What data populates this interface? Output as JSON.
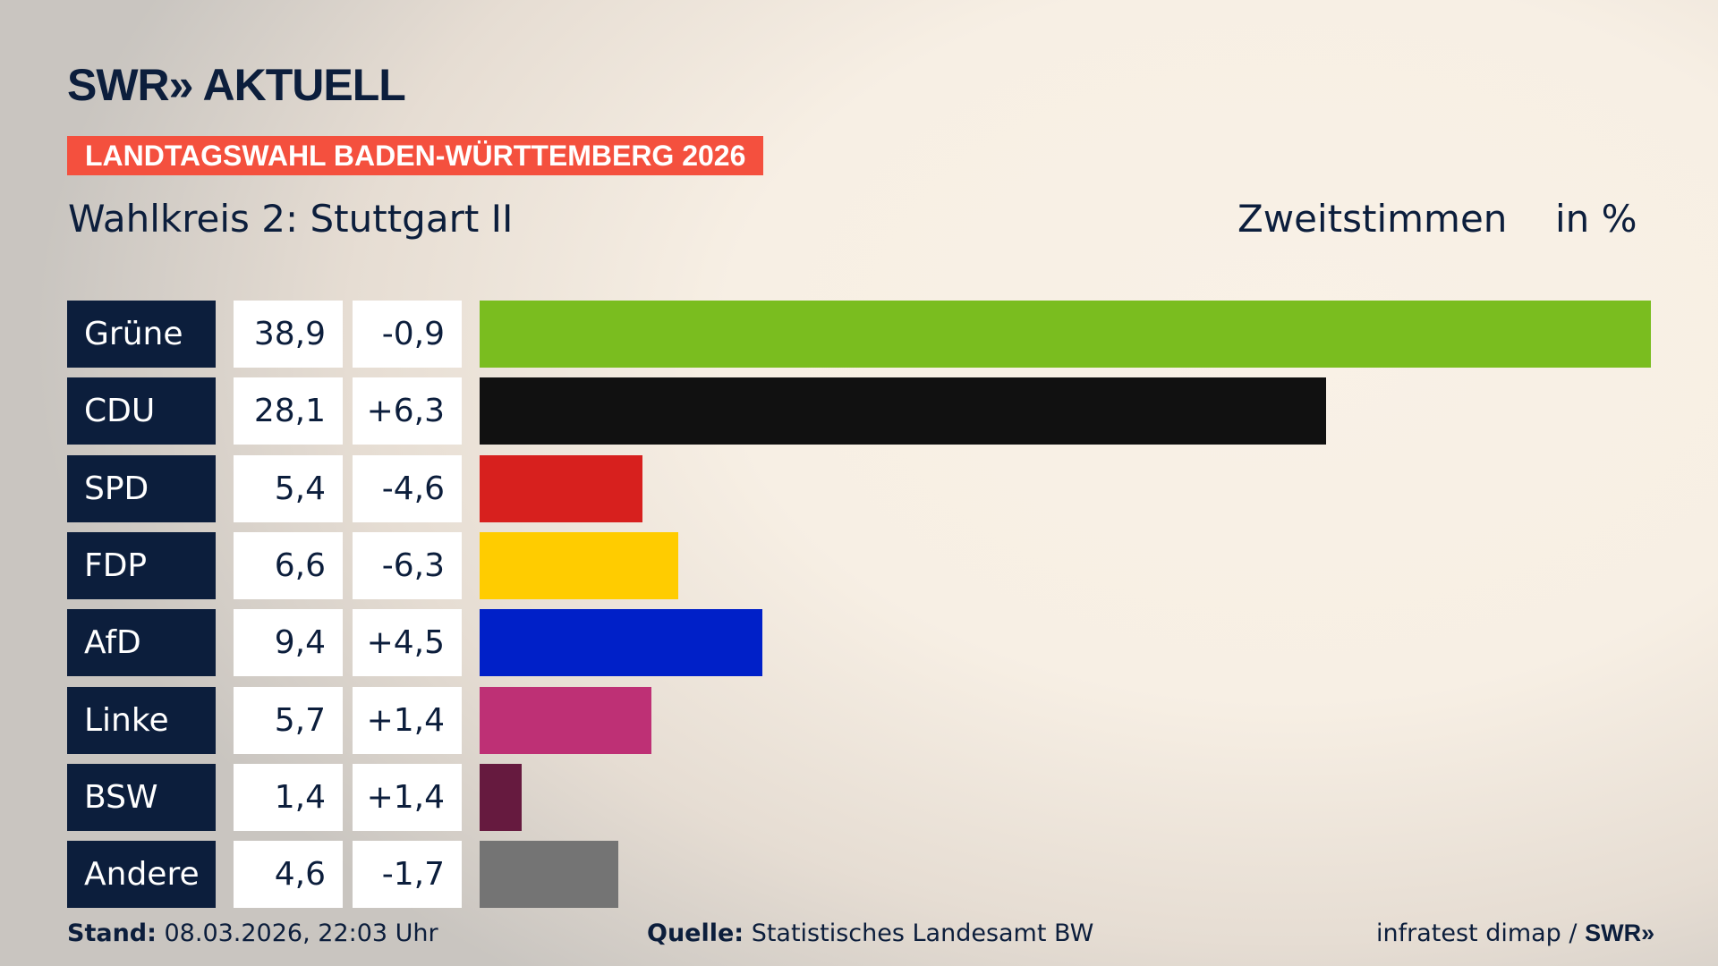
{
  "header": {
    "logo": "SWR» AKTUELL",
    "banner": "LANDTAGSWAHL BADEN-WÜRTTEMBERG 2026",
    "subtitle": "Wahlkreis 2: Stuttgart II",
    "measure": "Zweitstimmen",
    "unit": "in %"
  },
  "chart_data": {
    "type": "bar",
    "orientation": "horizontal",
    "categories": [
      "Grüne",
      "CDU",
      "SPD",
      "FDP",
      "AfD",
      "Linke",
      "BSW",
      "Andere"
    ],
    "values": [
      38.9,
      28.1,
      5.4,
      6.6,
      9.4,
      5.7,
      1.4,
      4.6
    ],
    "value_labels": [
      "38,9",
      "28,1",
      "5,4",
      "6,6",
      "9,4",
      "5,7",
      "1,4",
      "4,6"
    ],
    "changes": [
      -0.9,
      6.3,
      -4.6,
      -6.3,
      4.5,
      1.4,
      1.4,
      -1.7
    ],
    "change_labels": [
      "-0,9",
      "+6,3",
      "-4,6",
      "-6,3",
      "+4,5",
      "+1,4",
      "+1,4",
      "-1,7"
    ],
    "colors": [
      "#7abd1f",
      "#111111",
      "#d7201e",
      "#ffcc00",
      "#0020c8",
      "#be3075",
      "#661a3f",
      "#747474"
    ],
    "ylabel": "Zweitstimmen",
    "unit": "in %"
  },
  "footer": {
    "stand_label": "Stand:",
    "stand_value": " 08.03.2026, 22:03 Uhr",
    "quelle_label": "Quelle:",
    "quelle_value": " Statistisches Landesamt BW",
    "credit": "infratest dimap / ",
    "credit_logo": "SWR»"
  }
}
